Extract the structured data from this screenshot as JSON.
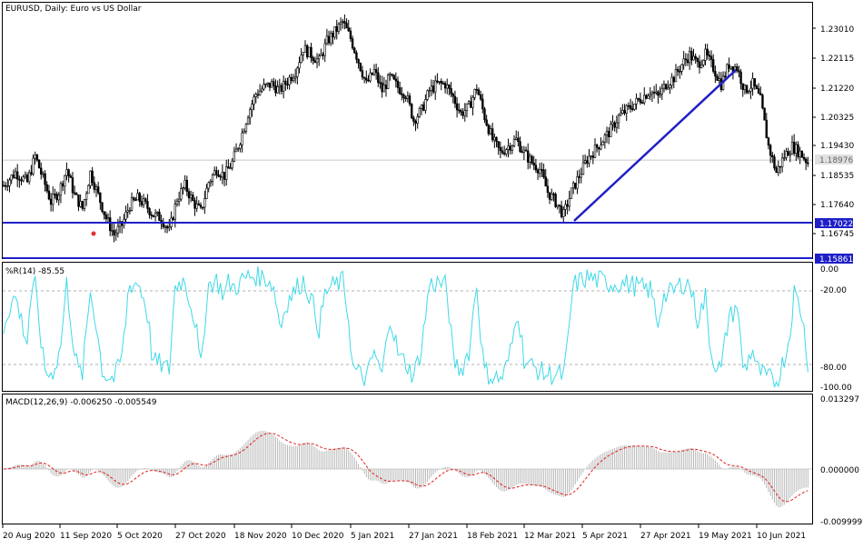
{
  "window": {
    "title": "EURUSD, Daily:  Euro vs US Dollar"
  },
  "price_panel": {
    "y_ticks": [
      "1.23010",
      "1.22115",
      "1.21220",
      "1.20325",
      "1.19430",
      "1.18535",
      "1.17640",
      "1.16745"
    ],
    "current_price": "1.18976",
    "level_1": "1.17022",
    "level_2": "1.15861"
  },
  "wpr_panel": {
    "title": "%R(14) -85.55",
    "y_ticks": [
      "0.00",
      "-20.00",
      "-80.00",
      "-100.00"
    ]
  },
  "macd_panel": {
    "title": "MACD(12,26,9) -0.006250 -0.005549",
    "y_ticks": [
      "0.013297",
      "0.000000",
      "-0.009999"
    ]
  },
  "x_axis": {
    "labels": [
      "20 Aug 2020",
      "11 Sep 2020",
      "5 Oct 2020",
      "27 Oct 2020",
      "18 Nov 2020",
      "10 Dec 2020",
      "5 Jan 2021",
      "27 Jan 2021",
      "18 Feb 2021",
      "12 Mar 2021",
      "5 Apr 2021",
      "27 Apr 2021",
      "19 May 2021",
      "10 Jun 2021"
    ]
  },
  "colors": {
    "candle": "#000000",
    "trendline": "#1f1fc8",
    "horizontal_line": "#1f1fc8",
    "wpr_line": "#3fd9e8",
    "macd_hist": "#b8b8b8",
    "macd_signal": "#e02020",
    "level_label_bg": "#1f1fc8",
    "current_label_bg": "#e0e0e0"
  },
  "chart_data": [
    {
      "type": "candlestick",
      "title": "EURUSD, Daily:  Euro vs US Dollar",
      "ylim": [
        1.1575,
        1.2355
      ],
      "close_path": [
        [
          0,
          1.182
        ],
        [
          6,
          1.186
        ],
        [
          12,
          1.183
        ],
        [
          16,
          1.191
        ],
        [
          20,
          1.184
        ],
        [
          24,
          1.177
        ],
        [
          28,
          1.18
        ],
        [
          32,
          1.187
        ],
        [
          36,
          1.179
        ],
        [
          40,
          1.175
        ],
        [
          44,
          1.186
        ],
        [
          48,
          1.179
        ],
        [
          52,
          1.172
        ],
        [
          56,
          1.167
        ],
        [
          60,
          1.17
        ],
        [
          64,
          1.176
        ],
        [
          68,
          1.178
        ],
        [
          72,
          1.176
        ],
        [
          76,
          1.173
        ],
        [
          80,
          1.172
        ],
        [
          84,
          1.168
        ],
        [
          88,
          1.178
        ],
        [
          92,
          1.182
        ],
        [
          96,
          1.177
        ],
        [
          100,
          1.174
        ],
        [
          104,
          1.183
        ],
        [
          108,
          1.187
        ],
        [
          112,
          1.185
        ],
        [
          116,
          1.189
        ],
        [
          120,
          1.196
        ],
        [
          124,
          1.204
        ],
        [
          128,
          1.21
        ],
        [
          132,
          1.212
        ],
        [
          136,
          1.213
        ],
        [
          140,
          1.211
        ],
        [
          144,
          1.214
        ],
        [
          148,
          1.217
        ],
        [
          152,
          1.224
        ],
        [
          156,
          1.222
        ],
        [
          160,
          1.22
        ],
        [
          164,
          1.226
        ],
        [
          168,
          1.229
        ],
        [
          172,
          1.232
        ],
        [
          176,
          1.227
        ],
        [
          180,
          1.22
        ],
        [
          184,
          1.213
        ],
        [
          188,
          1.217
        ],
        [
          192,
          1.211
        ],
        [
          196,
          1.215
        ],
        [
          200,
          1.212
        ],
        [
          204,
          1.21
        ],
        [
          208,
          1.202
        ],
        [
          212,
          1.205
        ],
        [
          216,
          1.211
        ],
        [
          220,
          1.213
        ],
        [
          224,
          1.213
        ],
        [
          228,
          1.209
        ],
        [
          232,
          1.204
        ],
        [
          236,
          1.206
        ],
        [
          240,
          1.212
        ],
        [
          244,
          1.203
        ],
        [
          248,
          1.196
        ],
        [
          252,
          1.192
        ],
        [
          256,
          1.194
        ],
        [
          260,
          1.196
        ],
        [
          264,
          1.192
        ],
        [
          268,
          1.189
        ],
        [
          272,
          1.187
        ],
        [
          276,
          1.18
        ],
        [
          280,
          1.177
        ],
        [
          284,
          1.173
        ],
        [
          288,
          1.18
        ],
        [
          292,
          1.185
        ],
        [
          296,
          1.19
        ],
        [
          300,
          1.193
        ],
        [
          304,
          1.196
        ],
        [
          308,
          1.199
        ],
        [
          312,
          1.203
        ],
        [
          316,
          1.205
        ],
        [
          320,
          1.207
        ],
        [
          324,
          1.209
        ],
        [
          328,
          1.211
        ],
        [
          332,
          1.209
        ],
        [
          336,
          1.213
        ],
        [
          340,
          1.215
        ],
        [
          344,
          1.219
        ],
        [
          348,
          1.222
        ],
        [
          352,
          1.219
        ],
        [
          356,
          1.222
        ],
        [
          360,
          1.218
        ],
        [
          364,
          1.213
        ],
        [
          368,
          1.219
        ],
        [
          372,
          1.218
        ],
        [
          376,
          1.211
        ],
        [
          380,
          1.213
        ],
        [
          384,
          1.208
        ],
        [
          388,
          1.194
        ],
        [
          392,
          1.186
        ],
        [
          396,
          1.191
        ],
        [
          400,
          1.194
        ],
        [
          404,
          1.192
        ],
        [
          408,
          1.189
        ]
      ],
      "trendline": {
        "from": [
          "31 Mar 2021",
          1.1702
        ],
        "to": [
          "25 May 2021",
          1.2168
        ]
      },
      "horizontal_lines": [
        1.17022,
        1.15861
      ],
      "current_price": 1.18976
    },
    {
      "type": "line",
      "title": "%R(14) -85.55",
      "ylim": [
        -100,
        0
      ],
      "levels": [
        -20,
        -80
      ],
      "last_value": -85.55
    },
    {
      "type": "bar",
      "title": "MACD(12,26,9) -0.006250 -0.005549",
      "ylim": [
        -0.009999,
        0.013297
      ],
      "series": [
        {
          "name": "MACD",
          "last_value": -0.00625
        },
        {
          "name": "Signal",
          "last_value": -0.005549
        }
      ]
    }
  ]
}
